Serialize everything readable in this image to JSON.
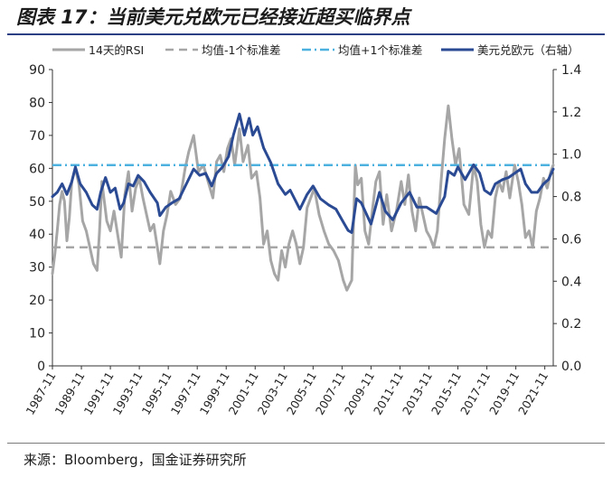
{
  "figure": {
    "title": "图表 17：当前美元兑欧元已经接近超买临界点",
    "source": "来源：Bloomberg，国金证券研究所"
  },
  "chart_data": {
    "type": "line",
    "x_tick_labels": [
      "1987-11",
      "1989-11",
      "1991-11",
      "1993-11",
      "1995-11",
      "1997-11",
      "1999-11",
      "2001-11",
      "2003-11",
      "2005-11",
      "2007-11",
      "2009-11",
      "2011-11",
      "2013-11",
      "2015-11",
      "2017-11",
      "2019-11",
      "2021-11"
    ],
    "x_range": [
      "1987-11",
      "2022-06"
    ],
    "y_left": {
      "range": [
        0,
        90
      ],
      "ticks": [
        0,
        10,
        20,
        30,
        40,
        50,
        60,
        70,
        80,
        90
      ]
    },
    "y_right": {
      "label": "右轴",
      "range": [
        0.0,
        1.4
      ],
      "ticks": [
        "0.0",
        "0.2",
        "0.4",
        "0.6",
        "0.8",
        "1.0",
        "1.2",
        "1.4"
      ]
    },
    "legend_position": "top",
    "series": [
      {
        "name": "14天的RSI",
        "axis": "left",
        "style": "solid",
        "color": "#a6a6a6",
        "points": [
          [
            "1987-11",
            28
          ],
          [
            "1988-01",
            34
          ],
          [
            "1988-03",
            41
          ],
          [
            "1988-05",
            49
          ],
          [
            "1988-07",
            53
          ],
          [
            "1988-09",
            50
          ],
          [
            "1988-11",
            38
          ],
          [
            "1989-01",
            45
          ],
          [
            "1989-03",
            56
          ],
          [
            "1989-06",
            60
          ],
          [
            "1989-09",
            55
          ],
          [
            "1989-12",
            44
          ],
          [
            "1990-03",
            41
          ],
          [
            "1990-06",
            36
          ],
          [
            "1990-09",
            31
          ],
          [
            "1990-12",
            29
          ],
          [
            "1991-02",
            41
          ],
          [
            "1991-04",
            56
          ],
          [
            "1991-06",
            50
          ],
          [
            "1991-08",
            44
          ],
          [
            "1991-11",
            41
          ],
          [
            "1992-02",
            47
          ],
          [
            "1992-05",
            40
          ],
          [
            "1992-08",
            33
          ],
          [
            "1992-11",
            52
          ],
          [
            "1993-02",
            59
          ],
          [
            "1993-05",
            47
          ],
          [
            "1993-08",
            54
          ],
          [
            "1993-11",
            57
          ],
          [
            "1994-02",
            51
          ],
          [
            "1994-05",
            46
          ],
          [
            "1994-08",
            41
          ],
          [
            "1994-11",
            43
          ],
          [
            "1995-02",
            36
          ],
          [
            "1995-04",
            31
          ],
          [
            "1995-07",
            41
          ],
          [
            "1995-10",
            46
          ],
          [
            "1996-01",
            53
          ],
          [
            "1996-05",
            49
          ],
          [
            "1996-09",
            51
          ],
          [
            "1997-01",
            60
          ],
          [
            "1997-04",
            65
          ],
          [
            "1997-08",
            70
          ],
          [
            "1997-12",
            59
          ],
          [
            "1998-04",
            61
          ],
          [
            "1998-08",
            56
          ],
          [
            "1998-12",
            51
          ],
          [
            "1999-03",
            62
          ],
          [
            "1999-06",
            64
          ],
          [
            "1999-09",
            59
          ],
          [
            "1999-12",
            66
          ],
          [
            "2000-03",
            69
          ],
          [
            "2000-06",
            61
          ],
          [
            "2000-10",
            72
          ],
          [
            "2001-01",
            62
          ],
          [
            "2001-05",
            67
          ],
          [
            "2001-08",
            57
          ],
          [
            "2001-12",
            59
          ],
          [
            "2002-03",
            51
          ],
          [
            "2002-06",
            37
          ],
          [
            "2002-09",
            41
          ],
          [
            "2002-12",
            32
          ],
          [
            "2003-03",
            28
          ],
          [
            "2003-06",
            26
          ],
          [
            "2003-09",
            35
          ],
          [
            "2003-12",
            30
          ],
          [
            "2004-03",
            37
          ],
          [
            "2004-06",
            41
          ],
          [
            "2004-09",
            37
          ],
          [
            "2004-12",
            31
          ],
          [
            "2005-03",
            36
          ],
          [
            "2005-06",
            48
          ],
          [
            "2005-09",
            51
          ],
          [
            "2005-12",
            54
          ],
          [
            "2006-04",
            46
          ],
          [
            "2006-08",
            41
          ],
          [
            "2006-12",
            37
          ],
          [
            "2007-04",
            35
          ],
          [
            "2007-08",
            32
          ],
          [
            "2007-12",
            26
          ],
          [
            "2008-03",
            23
          ],
          [
            "2008-07",
            26
          ],
          [
            "2008-10",
            61
          ],
          [
            "2008-12",
            55
          ],
          [
            "2009-03",
            57
          ],
          [
            "2009-06",
            41
          ],
          [
            "2009-09",
            37
          ],
          [
            "2009-12",
            47
          ],
          [
            "2010-03",
            56
          ],
          [
            "2010-06",
            59
          ],
          [
            "2010-09",
            43
          ],
          [
            "2010-12",
            52
          ],
          [
            "2011-04",
            41
          ],
          [
            "2011-08",
            47
          ],
          [
            "2011-12",
            56
          ],
          [
            "2012-03",
            49
          ],
          [
            "2012-06",
            58
          ],
          [
            "2012-09",
            47
          ],
          [
            "2012-12",
            41
          ],
          [
            "2013-03",
            51
          ],
          [
            "2013-06",
            46
          ],
          [
            "2013-09",
            41
          ],
          [
            "2013-12",
            39
          ],
          [
            "2014-03",
            36
          ],
          [
            "2014-06",
            41
          ],
          [
            "2014-09",
            56
          ],
          [
            "2014-12",
            69
          ],
          [
            "2015-03",
            79
          ],
          [
            "2015-06",
            69
          ],
          [
            "2015-09",
            61
          ],
          [
            "2015-12",
            66
          ],
          [
            "2016-04",
            49
          ],
          [
            "2016-08",
            46
          ],
          [
            "2016-12",
            61
          ],
          [
            "2017-03",
            56
          ],
          [
            "2017-06",
            43
          ],
          [
            "2017-09",
            36
          ],
          [
            "2017-12",
            41
          ],
          [
            "2018-03",
            39
          ],
          [
            "2018-06",
            51
          ],
          [
            "2018-09",
            56
          ],
          [
            "2018-12",
            53
          ],
          [
            "2019-03",
            59
          ],
          [
            "2019-06",
            51
          ],
          [
            "2019-10",
            61
          ],
          [
            "2020-01",
            56
          ],
          [
            "2020-04",
            49
          ],
          [
            "2020-07",
            39
          ],
          [
            "2020-10",
            41
          ],
          [
            "2021-01",
            36
          ],
          [
            "2021-04",
            47
          ],
          [
            "2021-07",
            51
          ],
          [
            "2021-10",
            57
          ],
          [
            "2022-01",
            54
          ],
          [
            "2022-04",
            59
          ],
          [
            "2022-06",
            61
          ]
        ]
      },
      {
        "name": "均值-1个标准差",
        "axis": "left",
        "style": "dashed",
        "color": "#a6a6a6",
        "value": 36
      },
      {
        "name": "均值+1个标准差",
        "axis": "left",
        "style": "dash-dot",
        "color": "#4db1e0",
        "value": 61
      },
      {
        "name": "美元兑欧元（右轴）",
        "axis": "right",
        "style": "solid",
        "color": "#2b4a94",
        "points": [
          [
            "1987-11",
            0.8
          ],
          [
            "1988-03",
            0.82
          ],
          [
            "1988-07",
            0.86
          ],
          [
            "1988-11",
            0.81
          ],
          [
            "1989-03",
            0.87
          ],
          [
            "1989-06",
            0.94
          ],
          [
            "1989-10",
            0.86
          ],
          [
            "1990-03",
            0.82
          ],
          [
            "1990-08",
            0.76
          ],
          [
            "1990-12",
            0.74
          ],
          [
            "1991-03",
            0.82
          ],
          [
            "1991-07",
            0.89
          ],
          [
            "1991-11",
            0.82
          ],
          [
            "1992-03",
            0.84
          ],
          [
            "1992-07",
            0.74
          ],
          [
            "1992-10",
            0.77
          ],
          [
            "1993-02",
            0.86
          ],
          [
            "1993-06",
            0.85
          ],
          [
            "1993-10",
            0.9
          ],
          [
            "1994-03",
            0.87
          ],
          [
            "1994-08",
            0.82
          ],
          [
            "1995-02",
            0.77
          ],
          [
            "1995-04",
            0.71
          ],
          [
            "1995-09",
            0.75
          ],
          [
            "1996-02",
            0.77
          ],
          [
            "1996-08",
            0.79
          ],
          [
            "1997-02",
            0.86
          ],
          [
            "1997-08",
            0.93
          ],
          [
            "1998-01",
            0.9
          ],
          [
            "1998-06",
            0.91
          ],
          [
            "1998-11",
            0.85
          ],
          [
            "1999-03",
            0.91
          ],
          [
            "1999-08",
            0.94
          ],
          [
            "2000-01",
            0.99
          ],
          [
            "2000-05",
            1.09
          ],
          [
            "2000-10",
            1.19
          ],
          [
            "2001-02",
            1.09
          ],
          [
            "2001-06",
            1.17
          ],
          [
            "2001-09",
            1.09
          ],
          [
            "2002-01",
            1.13
          ],
          [
            "2002-06",
            1.03
          ],
          [
            "2002-12",
            0.96
          ],
          [
            "2003-06",
            0.86
          ],
          [
            "2003-12",
            0.81
          ],
          [
            "2004-04",
            0.83
          ],
          [
            "2004-12",
            0.74
          ],
          [
            "2005-06",
            0.81
          ],
          [
            "2005-11",
            0.85
          ],
          [
            "2006-05",
            0.79
          ],
          [
            "2006-12",
            0.76
          ],
          [
            "2007-06",
            0.74
          ],
          [
            "2007-12",
            0.68
          ],
          [
            "2008-04",
            0.64
          ],
          [
            "2008-07",
            0.63
          ],
          [
            "2008-11",
            0.79
          ],
          [
            "2009-03",
            0.77
          ],
          [
            "2009-11",
            0.67
          ],
          [
            "2010-06",
            0.82
          ],
          [
            "2010-11",
            0.73
          ],
          [
            "2011-05",
            0.69
          ],
          [
            "2011-12",
            0.77
          ],
          [
            "2012-07",
            0.82
          ],
          [
            "2013-01",
            0.75
          ],
          [
            "2013-09",
            0.75
          ],
          [
            "2014-05",
            0.72
          ],
          [
            "2014-12",
            0.8
          ],
          [
            "2015-03",
            0.92
          ],
          [
            "2015-08",
            0.9
          ],
          [
            "2015-11",
            0.94
          ],
          [
            "2016-05",
            0.88
          ],
          [
            "2016-12",
            0.95
          ],
          [
            "2017-05",
            0.91
          ],
          [
            "2017-09",
            0.83
          ],
          [
            "2018-02",
            0.81
          ],
          [
            "2018-06",
            0.86
          ],
          [
            "2018-12",
            0.88
          ],
          [
            "2019-05",
            0.89
          ],
          [
            "2019-10",
            0.91
          ],
          [
            "2020-03",
            0.93
          ],
          [
            "2020-07",
            0.86
          ],
          [
            "2020-12",
            0.82
          ],
          [
            "2021-05",
            0.82
          ],
          [
            "2021-10",
            0.86
          ],
          [
            "2022-02",
            0.88
          ],
          [
            "2022-06",
            0.93
          ]
        ]
      }
    ]
  }
}
